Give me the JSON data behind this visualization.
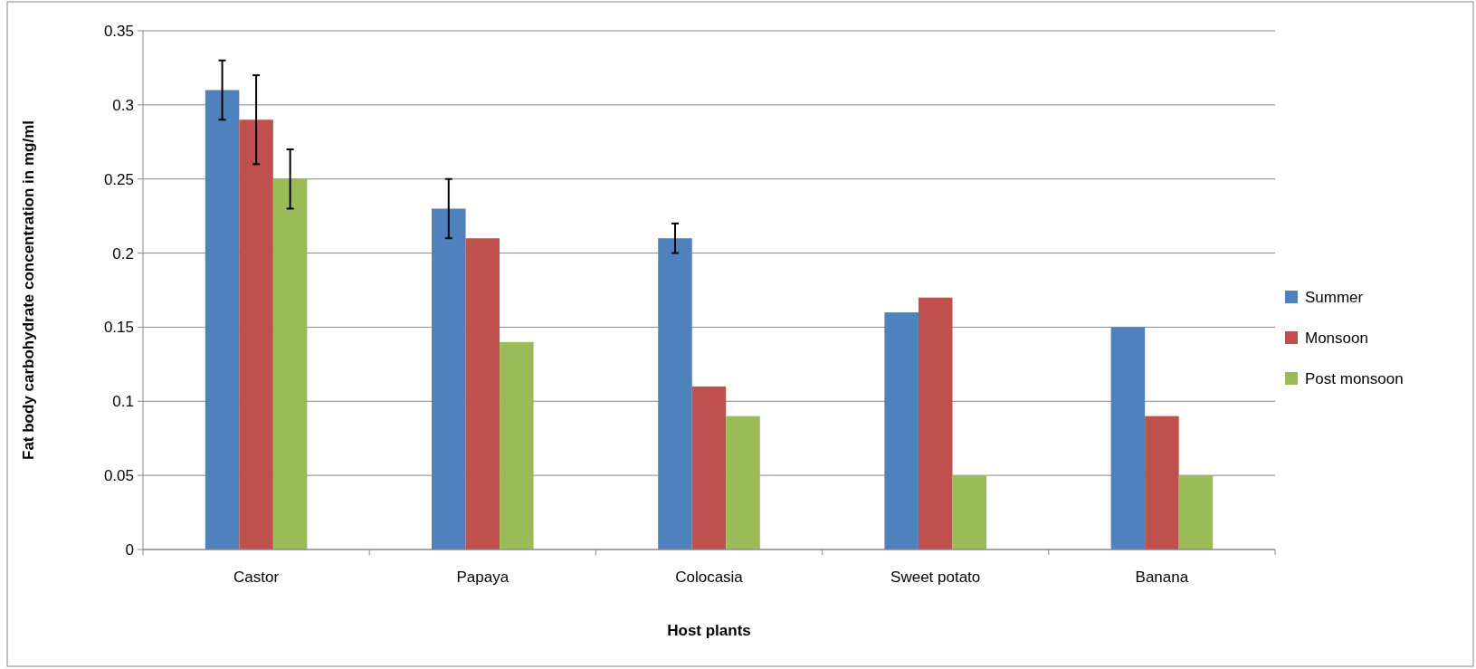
{
  "chart_data": {
    "type": "bar",
    "xlabel": "Host plants",
    "ylabel": "Fat body carbohydrate concentration in mg/ml",
    "categories": [
      "Castor",
      "Papaya",
      "Colocasia",
      "Sweet potato",
      "Banana"
    ],
    "series": [
      {
        "name": "Summer",
        "color": "#4f81bd",
        "values": [
          0.31,
          0.23,
          0.21,
          0.16,
          0.15
        ],
        "errors": [
          0.02,
          0.02,
          0.01,
          null,
          null
        ]
      },
      {
        "name": "Monsoon",
        "color": "#c0504d",
        "values": [
          0.29,
          0.21,
          0.11,
          0.17,
          0.09
        ],
        "errors": [
          0.03,
          null,
          null,
          null,
          null
        ]
      },
      {
        "name": "Post monsoon",
        "color": "#9bbb59",
        "values": [
          0.25,
          0.14,
          0.09,
          0.05,
          0.05
        ],
        "errors": [
          0.02,
          null,
          null,
          null,
          null
        ]
      }
    ],
    "ylim": [
      0,
      0.35
    ],
    "yticks": [
      0,
      0.05,
      0.1,
      0.15,
      0.2,
      0.25,
      0.3,
      0.35
    ],
    "grid": "y",
    "legend": "right"
  }
}
